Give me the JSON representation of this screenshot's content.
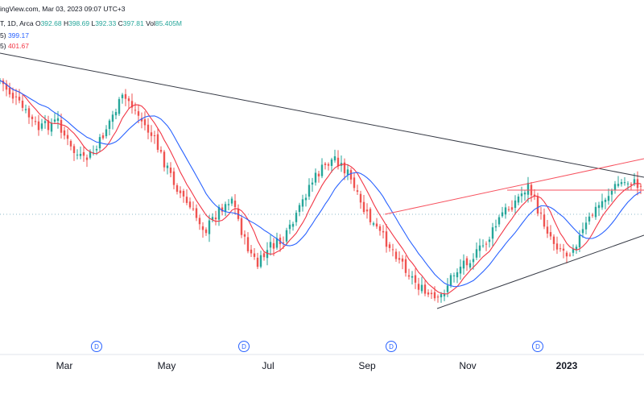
{
  "header": {
    "source_line": "ingView.com, Mar 03, 2023 09:07 UTC+3",
    "ohlc_line": {
      "prefix": "T, 1D, Arca",
      "o_label": "O",
      "o": "392.68",
      "h_label": "H",
      "h": "398.69",
      "l_label": "L",
      "l": "392.33",
      "c_label": "C",
      "c": "397.81",
      "vol_label": "Vol",
      "vol": "85.405M"
    },
    "ma1_prefix": "5)",
    "ma1_value": "399.17",
    "ma1_color": "#2962ff",
    "ma2_prefix": "5)",
    "ma2_value": "401.67",
    "ma2_color": "#f23645"
  },
  "colors": {
    "up": "#26a69a",
    "down": "#ef5350",
    "ma_fast": "#f23645",
    "ma_slow": "#2962ff",
    "trendline": "#363a45",
    "channel_upper": "#f7525f",
    "dividend_marker": "#2962ff"
  },
  "chart_data": {
    "type": "candlestick",
    "title": "",
    "xlabel": "",
    "ylabel": "",
    "x_ticks": [
      "Mar",
      "May",
      "Jul",
      "Sep",
      "Nov",
      "2023"
    ],
    "dividend_markers": [
      "D",
      "D",
      "D",
      "D"
    ],
    "series": [
      {
        "name": "OHLC",
        "values": []
      },
      {
        "name": "399.17"
      },
      {
        "name": "401.67"
      }
    ]
  }
}
